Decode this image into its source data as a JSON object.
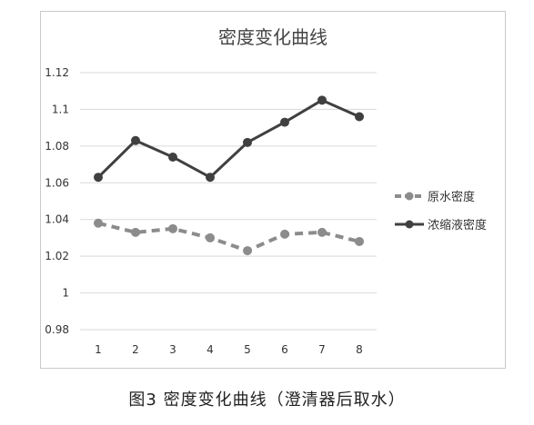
{
  "caption": "图3 密度变化曲线（澄清器后取水）",
  "chart_data": {
    "type": "line",
    "title": "密度变化曲线",
    "xlabel": "",
    "ylabel": "",
    "categories": [
      "1",
      "2",
      "3",
      "4",
      "5",
      "6",
      "7",
      "8"
    ],
    "ylim": [
      0.98,
      1.12
    ],
    "yticks": [
      "0.98",
      "1",
      "1.02",
      "1.04",
      "1.06",
      "1.08",
      "1.1",
      "1.12"
    ],
    "grid": true,
    "legend_position": "right",
    "series": [
      {
        "name": "原水密度",
        "values": [
          1.038,
          1.033,
          1.035,
          1.03,
          1.023,
          1.032,
          1.033,
          1.028
        ],
        "color": "#8c8c8c",
        "style": "dashed"
      },
      {
        "name": "浓缩液密度",
        "values": [
          1.063,
          1.083,
          1.074,
          1.063,
          1.082,
          1.093,
          1.105,
          1.096
        ],
        "color": "#404040",
        "style": "solid"
      }
    ]
  }
}
